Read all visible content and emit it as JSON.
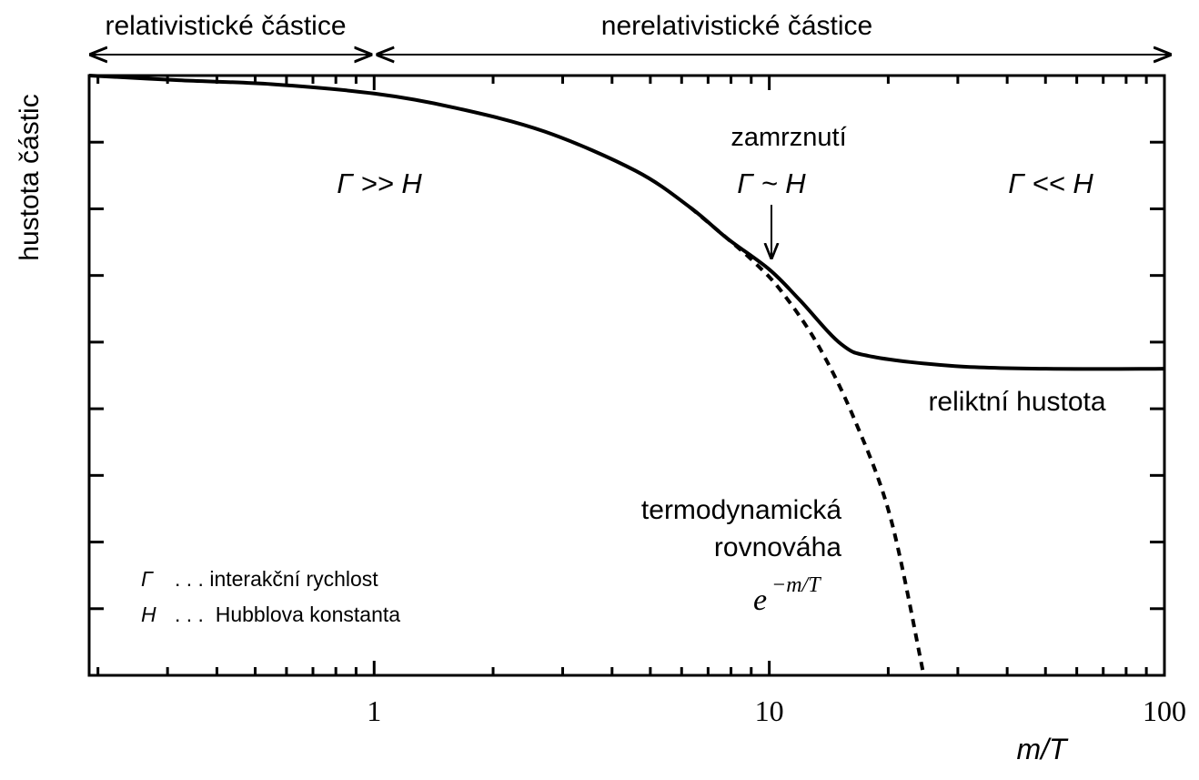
{
  "chart_data": {
    "type": "line",
    "annotations": [
      "relativistické částice",
      "nerelativistické částice",
      "zamrznutí",
      "Γ ~ H",
      "Γ >> H",
      "Γ << H",
      "reliktní hustota",
      "termodynamická",
      "rovnováha",
      "e",
      "−m/T"
    ],
    "legend_items": [
      [
        "Γ",
        ". . . interakční rychlost"
      ],
      [
        "H",
        ". . .  Hubblova konstanta"
      ]
    ],
    "xlabel": "m/T",
    "ylabel": "hustota částic",
    "xscale": "log",
    "xlim": [
      0.19,
      100
    ],
    "xticks": [
      1,
      10,
      100
    ],
    "xminorticks": [
      0.2,
      0.3,
      0.4,
      0.5,
      0.6,
      0.7,
      0.8,
      0.9,
      2,
      3,
      4,
      5,
      6,
      7,
      8,
      9,
      20,
      30,
      40,
      50,
      60,
      70,
      80,
      90
    ],
    "ylim": [
      0,
      9
    ],
    "yticks": [
      1,
      2,
      3,
      4,
      5,
      6,
      7,
      8
    ],
    "series": [
      {
        "color": "#000000",
        "linestyle": "solid",
        "x": [
          0.19,
          0.32,
          0.55,
          1,
          1.59,
          2.7,
          4.59,
          6.31,
          7.81,
          10,
          11.95,
          15.2,
          18.3,
          29.5,
          50.1,
          100
        ],
        "values": [
          9.0,
          8.93,
          8.87,
          8.73,
          8.52,
          8.16,
          7.57,
          7.02,
          6.56,
          6.09,
          5.63,
          4.97,
          4.78,
          4.64,
          4.6,
          4.6
        ]
      },
      {
        "color": "#000000",
        "linestyle": "dotted",
        "x": [
          6.31,
          7.81,
          9.16,
          10.74,
          13.3,
          16.4,
          20.3,
          24.6
        ],
        "values": [
          7.02,
          6.56,
          6.2,
          5.76,
          4.95,
          3.85,
          2.35,
          0
        ]
      }
    ]
  }
}
